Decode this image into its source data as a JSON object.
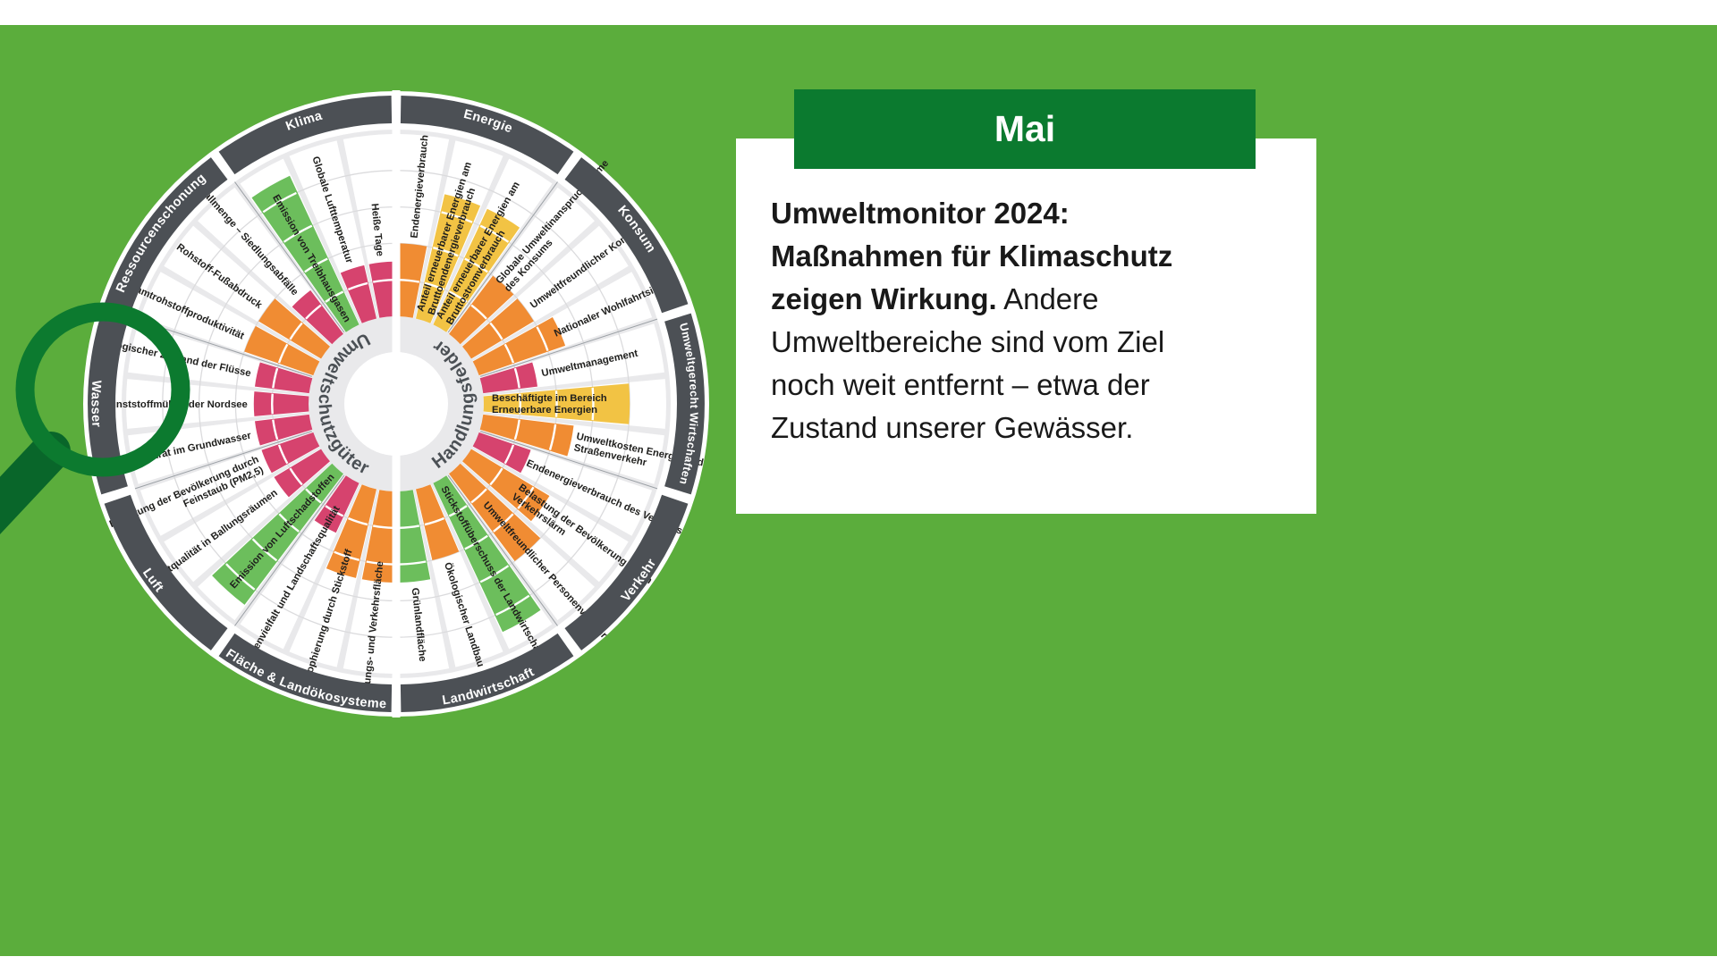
{
  "page": {
    "background_color": "#5BAD3C",
    "strip_color": "#FFFFFF"
  },
  "calendar_card": {
    "month": "Mai",
    "header_color": "#0B7A2F",
    "message_lines": [
      {
        "bold": "Umweltmonitor 2024:",
        "regular": ""
      },
      {
        "bold": "Maßnahmen für Klimaschutz",
        "regular": ""
      },
      {
        "bold": "zeigen Wirkung.",
        "regular": " Andere"
      },
      {
        "bold": "",
        "regular": "Umweltbereiche sind vom Ziel"
      },
      {
        "bold": "",
        "regular": "noch weit entfernt – etwa der"
      },
      {
        "bold": "",
        "regular": "Zustand unserer Gewässer."
      }
    ]
  },
  "magnifier": {
    "ring_color": "#0C7A2F",
    "handle_color": "#09662A"
  },
  "chart_data": {
    "type": "radial_status_wheel",
    "title": "Umweltmonitor",
    "inner_labels": {
      "left": "Umweltschutzgüter",
      "right": "Handlungsfelder"
    },
    "rings": 5,
    "status_colors": {
      "good": "#6CBE5C",
      "medium": "#F2C344",
      "deficit": "#F08C33",
      "bad": "#D6436E"
    },
    "band_color": "#4C5055",
    "disc_color": "#E9E9EB",
    "sectors": [
      {
        "name": "Energie",
        "group": "Handlungsfelder",
        "indicators": [
          {
            "label": [
              "Endenergieverbrauch"
            ],
            "status": "deficit",
            "rings": 2
          },
          {
            "label": [
              "Anteil erneuerbarer Energien am",
              "Bruttoendenergieverbrauch"
            ],
            "status": "medium",
            "rings": 3.5
          },
          {
            "label": [
              "Anteil erneuerbarer Energien am",
              "Bruttostromverbrauch"
            ],
            "status": "medium",
            "rings": 3.5
          }
        ]
      },
      {
        "name": "Konsum",
        "group": "Handlungsfelder",
        "indicators": [
          {
            "label": [
              "Globale Umweltinanspruchnahme",
              "des Konsums"
            ],
            "status": "deficit",
            "rings": 2
          },
          {
            "label": [
              "Umweltfreundlicher Konsum"
            ],
            "status": "deficit",
            "rings": 2
          },
          {
            "label": [
              "Nationaler Wohlfahrtsindex"
            ],
            "status": "deficit",
            "rings": 2.5
          }
        ]
      },
      {
        "name": "Umweltgerecht Wirtschaften",
        "group": "Handlungsfelder",
        "indicators": [
          {
            "label": [
              "Umweltmanagement"
            ],
            "status": "bad",
            "rings": 1.5
          },
          {
            "label": [
              "Beschäftigte im Bereich",
              "Erneuerbare Energien"
            ],
            "status": "medium",
            "rings": 4
          },
          {
            "label": [
              "Umweltkosten Energie und",
              "Straßenverkehr"
            ],
            "status": "deficit",
            "rings": 2.5
          }
        ]
      },
      {
        "name": "Verkehr",
        "group": "Handlungsfelder",
        "indicators": [
          {
            "label": [
              "Endenergieverbrauch des Verkehrs"
            ],
            "status": "bad",
            "rings": 1.5
          },
          {
            "label": [
              "Belastung der Bevölkerung durch",
              "Verkehrslärm"
            ],
            "status": "deficit",
            "rings": 2.5
          },
          {
            "label": [
              "Umweltfreundlicher Personenverkehr"
            ],
            "status": "deficit",
            "rings": 3
          }
        ]
      },
      {
        "name": "Landwirtschaft",
        "group": "Handlungsfelder",
        "indicators": [
          {
            "label": [
              "Stickstoffüberschuss der Landwirtschaft"
            ],
            "status": "good",
            "rings": 4.5
          },
          {
            "label": [
              "Ökologischer Landbau"
            ],
            "status": "deficit",
            "rings": 2
          },
          {
            "label": [
              "Grünlandfläche"
            ],
            "status": "good",
            "rings": 2.5
          }
        ]
      },
      {
        "name": "Fläche & Landökosysteme",
        "group": "Umweltschutzgüter",
        "indicators": [
          {
            "label": [
              "Siedlungs- und Verkehrsfläche"
            ],
            "status": "deficit",
            "rings": 2.5
          },
          {
            "label": [
              "Eutrophierung durch Stickstoff"
            ],
            "status": "deficit",
            "rings": 2.5
          },
          {
            "label": [
              "Artenvielfalt und Landschaftsqualität"
            ],
            "status": "bad",
            "rings": 1.5
          }
        ]
      },
      {
        "name": "Luft",
        "group": "Umweltschutzgüter",
        "indicators": [
          {
            "label": [
              "Emission von Luftschadstoffen"
            ],
            "status": "good",
            "rings": 4.5
          },
          {
            "label": [
              "Luftqualität in Ballungsräumen"
            ],
            "status": "bad",
            "rings": 1.5
          },
          {
            "label": [
              "Belastung der Bevölkerung durch",
              "Feinstaub (PM2,5)"
            ],
            "status": "bad",
            "rings": 1.5
          }
        ]
      },
      {
        "name": "Wasser",
        "group": "Umweltschutzgüter",
        "indicators": [
          {
            "label": [
              "Nitrat im Grundwasser"
            ],
            "status": "bad",
            "rings": 1.5
          },
          {
            "label": [
              "Kunststoffmüll in der Nordsee"
            ],
            "status": "bad",
            "rings": 1.5
          },
          {
            "label": [
              "Ökologischer Zustand der Flüsse"
            ],
            "status": "bad",
            "rings": 1.5
          }
        ]
      },
      {
        "name": "Ressourcenschonung",
        "group": "Umweltschutzgüter",
        "indicators": [
          {
            "label": [
              "Gesamtrohstoffproduktivität"
            ],
            "status": "deficit",
            "rings": 2
          },
          {
            "label": [
              "Rohstoff-Fußabdruck"
            ],
            "status": "deficit",
            "rings": 2
          },
          {
            "label": [
              "Abfallmenge – Siedlungsabfälle"
            ],
            "status": "bad",
            "rings": 1.5
          }
        ]
      },
      {
        "name": "Klima",
        "group": "Umweltschutzgüter",
        "indicators": [
          {
            "label": [
              "Emission von Treibhausgasen"
            ],
            "status": "good",
            "rings": 4.5
          },
          {
            "label": [
              "Globale Lufttemperatur"
            ],
            "status": "bad",
            "rings": 1.5
          },
          {
            "label": [
              "Heiße Tage"
            ],
            "status": "bad",
            "rings": 1.5
          }
        ]
      }
    ]
  }
}
